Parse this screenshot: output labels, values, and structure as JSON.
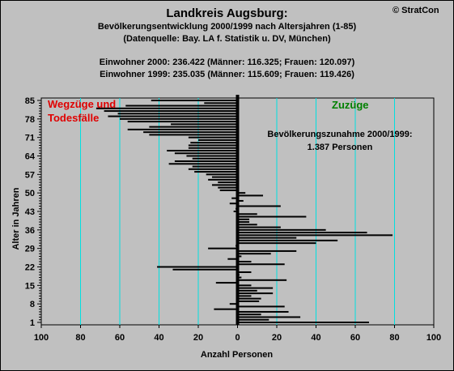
{
  "header": {
    "title": "Landkreis Augsburg:",
    "subtitle": "Bevölkerungsentwicklung 2000/1999  nach Altersjahren (1-85)",
    "source": "(Datenquelle: Bay. LA f. Statistik u. DV, München)",
    "population_2000": "Einwohner 2000: 236.422  (Männer: 116.325; Frauen: 120.097)",
    "population_1999": "Einwohner 1999: 235.035  (Männer: 115.609; Frauen: 119.426)",
    "copyright": "© StratCon"
  },
  "chart_data": {
    "type": "bar",
    "orientation": "horizontal",
    "xlabel": "Anzahl Personen",
    "ylabel": "Alter in Jahren",
    "xlim": [
      -100,
      100
    ],
    "ylim": [
      1,
      85
    ],
    "x_ticks": [
      "100",
      "80",
      "60",
      "40",
      "20",
      "0",
      "20",
      "40",
      "60",
      "80",
      "100"
    ],
    "y_ticks": [
      1,
      8,
      15,
      22,
      29,
      36,
      43,
      50,
      57,
      64,
      71,
      78,
      85
    ],
    "annotations": {
      "left_label_line1": "Wegzüge und",
      "left_label_line2": "Todesfälle",
      "right_label": "Zuzüge",
      "total_line1": "Bevölkerungszunahme 2000/1999:",
      "total_line2": "1.387 Personen"
    },
    "colors": {
      "bar": "#000000",
      "grid": "#00e0e0",
      "plot_bg": "#c0c0c0",
      "left_label": "#e00000",
      "right_label": "#008000"
    },
    "categories": [
      1,
      2,
      3,
      4,
      5,
      6,
      7,
      8,
      9,
      10,
      11,
      12,
      13,
      14,
      15,
      16,
      17,
      18,
      19,
      20,
      21,
      22,
      23,
      24,
      25,
      26,
      27,
      28,
      29,
      30,
      31,
      32,
      33,
      34,
      35,
      36,
      37,
      38,
      39,
      40,
      41,
      42,
      43,
      44,
      45,
      46,
      47,
      48,
      49,
      50,
      51,
      52,
      53,
      54,
      55,
      56,
      57,
      58,
      59,
      60,
      61,
      62,
      63,
      64,
      65,
      66,
      67,
      68,
      69,
      70,
      71,
      72,
      73,
      74,
      75,
      76,
      77,
      78,
      79,
      80,
      81,
      82,
      83,
      84,
      85
    ],
    "values": [
      67,
      16,
      32,
      12,
      26,
      -12,
      24,
      -4,
      11,
      12,
      7,
      18,
      10,
      18,
      7,
      -11,
      25,
      2,
      1,
      7,
      -33,
      -41,
      24,
      7,
      -5,
      2,
      17,
      30,
      -15,
      -1,
      40,
      51,
      30,
      79,
      66,
      45,
      22,
      10,
      6,
      6,
      35,
      10,
      -2,
      -1,
      22,
      -4,
      3,
      -3,
      13,
      4,
      -9,
      -10,
      -13,
      -10,
      -15,
      -13,
      -16,
      -22,
      -25,
      -23,
      -35,
      -32,
      -23,
      -26,
      -32,
      -36,
      -25,
      -25,
      -24,
      -20,
      -25,
      -45,
      -48,
      -56,
      -45,
      -34,
      -56,
      -60,
      -66,
      -61,
      -68,
      -72,
      -57,
      -17,
      -44
    ]
  }
}
